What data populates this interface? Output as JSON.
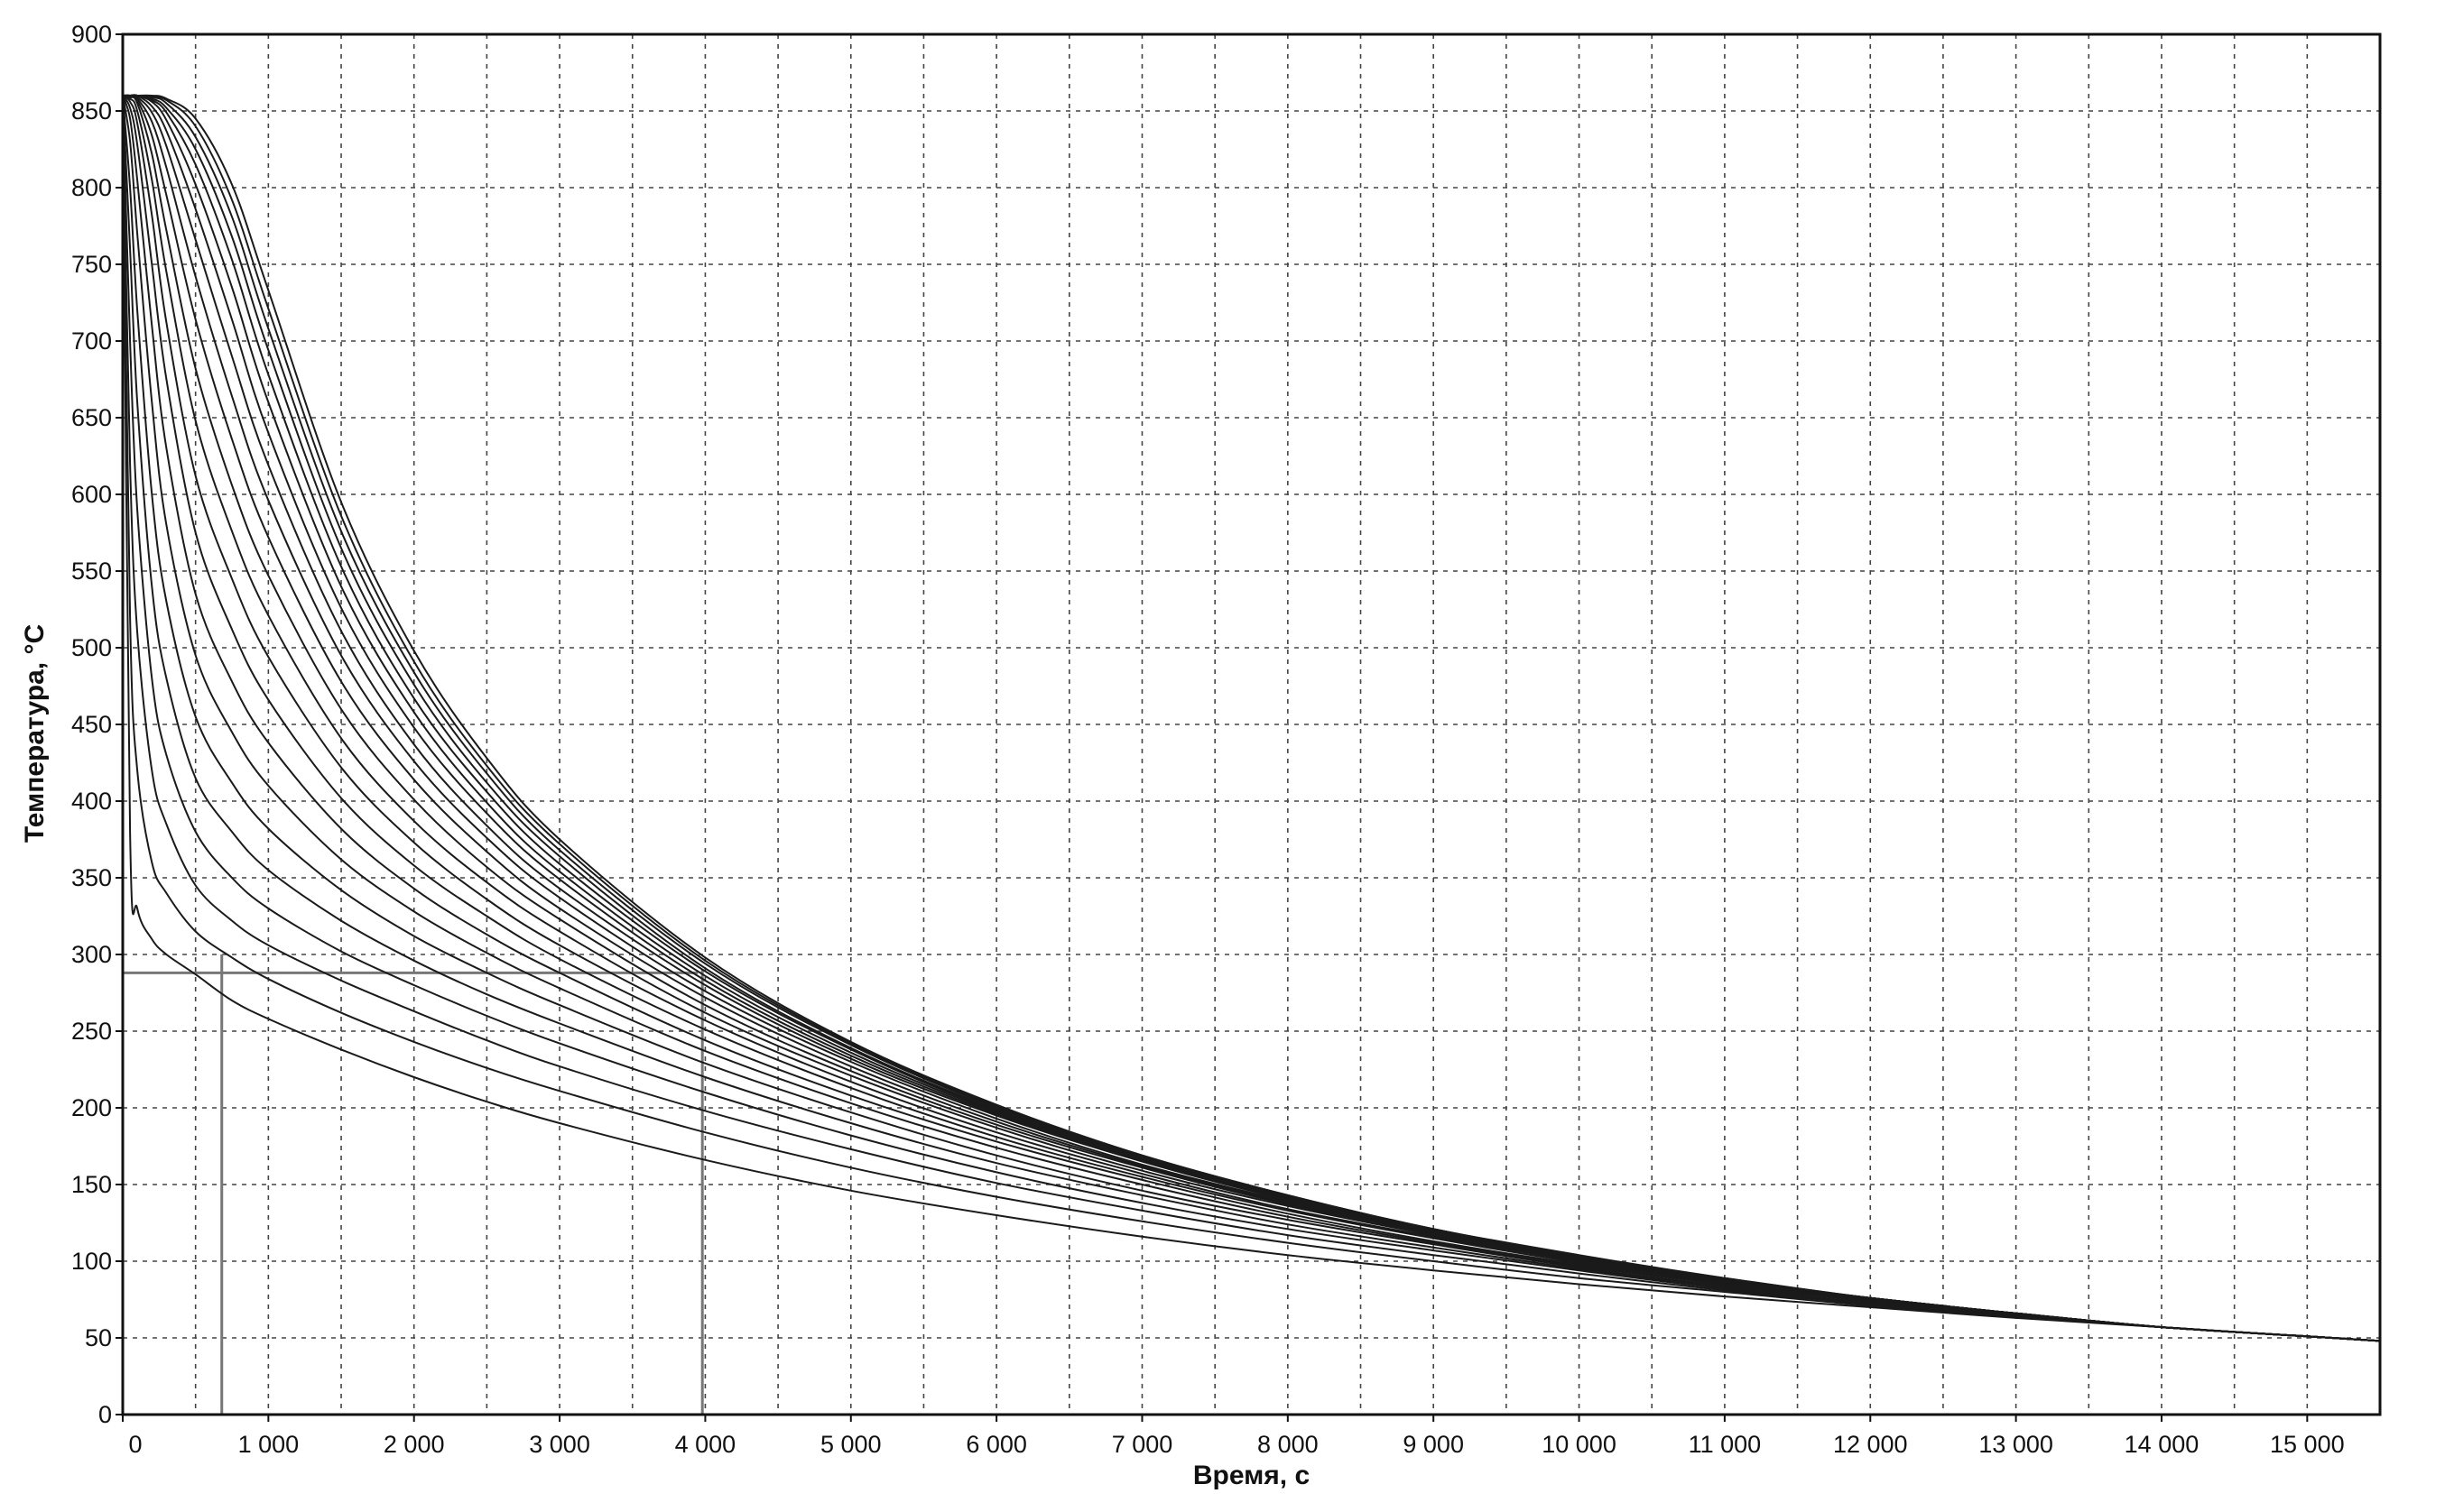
{
  "chart_data": {
    "type": "line",
    "title": "",
    "xlabel": "Время, с",
    "ylabel": "Температура, °С",
    "xlim": [
      0,
      15500
    ],
    "ylim": [
      0,
      900
    ],
    "x_ticks": [
      0,
      1000,
      2000,
      3000,
      4000,
      5000,
      6000,
      7000,
      8000,
      9000,
      10000,
      11000,
      12000,
      13000,
      14000,
      15000
    ],
    "x_tick_labels": [
      "0",
      "1 000",
      "2 000",
      "3 000",
      "4 000",
      "5 000",
      "6 000",
      "7 000",
      "8 000",
      "9 000",
      "10 000",
      "11 000",
      "12 000",
      "13 000",
      "14 000",
      "15 000"
    ],
    "y_ticks": [
      0,
      50,
      100,
      150,
      200,
      250,
      300,
      350,
      400,
      450,
      500,
      550,
      600,
      650,
      700,
      750,
      800,
      850,
      900
    ],
    "y_tick_labels": [
      "0",
      "50",
      "100",
      "150",
      "200",
      "250",
      "300",
      "350",
      "400",
      "450",
      "500",
      "550",
      "600",
      "650",
      "700",
      "750",
      "800",
      "850",
      "900"
    ],
    "grid": true,
    "grid_x_step": 500,
    "grid_style": "dashed",
    "legend": "none",
    "curve_color": "#1a1a1a",
    "series_x": [
      0,
      50,
      100,
      200,
      300,
      500,
      750,
      1000,
      1500,
      2000,
      2500,
      3000,
      4000,
      5000,
      6000,
      7000,
      8000,
      9000,
      10000,
      11000,
      12000,
      13000,
      14000,
      15000,
      15500
    ],
    "series": [
      {
        "values": [
          860,
          380,
          330,
          310,
          300,
          287,
          270,
          258,
          238,
          220,
          204,
          190,
          166,
          146,
          130,
          116,
          104,
          94,
          85,
          77,
          70,
          63,
          57,
          51,
          48
        ]
      },
      {
        "values": [
          860,
          520,
          420,
          360,
          340,
          315,
          298,
          284,
          262,
          243,
          226,
          211,
          184,
          161,
          142,
          126,
          112,
          100,
          89,
          80,
          71,
          64,
          57,
          51,
          48
        ]
      },
      {
        "values": [
          860,
          620,
          510,
          420,
          385,
          345,
          322,
          306,
          283,
          263,
          244,
          227,
          198,
          173,
          151,
          133,
          117,
          104,
          92,
          81,
          72,
          64,
          57,
          51,
          48
        ]
      },
      {
        "values": [
          860,
          700,
          590,
          480,
          430,
          380,
          350,
          330,
          302,
          280,
          260,
          242,
          210,
          182,
          158,
          138,
          121,
          107,
          94,
          82,
          73,
          64,
          57,
          51,
          48
        ]
      },
      {
        "values": [
          860,
          760,
          660,
          540,
          480,
          415,
          380,
          355,
          322,
          296,
          274,
          255,
          220,
          190,
          164,
          143,
          124,
          109,
          95,
          83,
          73,
          65,
          57,
          51,
          48
        ]
      },
      {
        "values": [
          860,
          800,
          720,
          600,
          530,
          455,
          412,
          382,
          342,
          312,
          288,
          267,
          229,
          197,
          169,
          146,
          127,
          111,
          96,
          84,
          74,
          65,
          57,
          51,
          48
        ]
      },
      {
        "values": [
          860,
          830,
          770,
          660,
          580,
          495,
          445,
          410,
          362,
          328,
          301,
          278,
          237,
          203,
          174,
          150,
          129,
          112,
          97,
          85,
          74,
          65,
          57,
          51,
          48
        ]
      },
      {
        "values": [
          860,
          845,
          805,
          710,
          630,
          535,
          478,
          438,
          382,
          343,
          313,
          288,
          244,
          208,
          178,
          153,
          131,
          113,
          98,
          85,
          74,
          65,
          57,
          51,
          48
        ]
      },
      {
        "values": [
          860,
          852,
          828,
          750,
          675,
          575,
          512,
          466,
          402,
          358,
          325,
          297,
          251,
          213,
          181,
          155,
          133,
          115,
          99,
          86,
          75,
          65,
          57,
          51,
          48
        ]
      },
      {
        "values": [
          860,
          856,
          842,
          782,
          712,
          612,
          545,
          494,
          422,
          373,
          336,
          306,
          257,
          217,
          184,
          157,
          134,
          116,
          100,
          86,
          75,
          65,
          57,
          51,
          48
        ]
      },
      {
        "values": [
          860,
          858,
          850,
          805,
          745,
          648,
          576,
          521,
          441,
          387,
          347,
          315,
          262,
          221,
          187,
          159,
          136,
          117,
          100,
          87,
          75,
          66,
          57,
          51,
          48
        ]
      },
      {
        "values": [
          860,
          859,
          855,
          822,
          772,
          682,
          606,
          547,
          460,
          401,
          357,
          323,
          267,
          224,
          189,
          161,
          137,
          117,
          101,
          87,
          75,
          66,
          57,
          51,
          48
        ]
      },
      {
        "values": [
          860,
          860,
          857,
          834,
          795,
          714,
          636,
          572,
          478,
          414,
          367,
          330,
          272,
          227,
          191,
          162,
          138,
          118,
          101,
          87,
          75,
          66,
          57,
          51,
          48
        ]
      },
      {
        "values": [
          860,
          860,
          858,
          843,
          813,
          742,
          664,
          596,
          495,
          426,
          376,
          337,
          276,
          230,
          193,
          163,
          139,
          119,
          102,
          88,
          76,
          66,
          57,
          51,
          48
        ]
      },
      {
        "values": [
          860,
          860,
          859,
          849,
          827,
          766,
          690,
          619,
          511,
          437,
          384,
          343,
          280,
          232,
          195,
          165,
          140,
          119,
          102,
          88,
          76,
          66,
          57,
          51,
          48
        ]
      },
      {
        "values": [
          860,
          860,
          860,
          853,
          837,
          786,
          714,
          640,
          526,
          448,
          392,
          349,
          283,
          234,
          196,
          166,
          140,
          120,
          102,
          88,
          76,
          66,
          57,
          51,
          48
        ]
      },
      {
        "values": [
          860,
          860,
          860,
          856,
          844,
          802,
          735,
          660,
          540,
          458,
          399,
          354,
          286,
          236,
          197,
          166,
          141,
          120,
          103,
          88,
          76,
          66,
          57,
          51,
          48
        ]
      },
      {
        "values": [
          860,
          860,
          860,
          857,
          849,
          815,
          753,
          678,
          553,
          467,
          406,
          359,
          289,
          238,
          198,
          167,
          141,
          120,
          103,
          88,
          76,
          66,
          57,
          51,
          48
        ]
      },
      {
        "values": [
          860,
          860,
          860,
          858,
          852,
          825,
          768,
          694,
          565,
          476,
          412,
          364,
          291,
          239,
          199,
          168,
          142,
          121,
          103,
          88,
          76,
          66,
          57,
          51,
          48
        ]
      },
      {
        "values": [
          860,
          860,
          860,
          859,
          855,
          833,
          781,
          708,
          576,
          484,
          418,
          368,
          294,
          241,
          200,
          168,
          142,
          121,
          103,
          88,
          76,
          66,
          57,
          51,
          48
        ]
      },
      {
        "values": [
          860,
          860,
          860,
          859,
          857,
          840,
          792,
          721,
          586,
          491,
          423,
          372,
          296,
          242,
          201,
          169,
          143,
          121,
          103,
          89,
          76,
          66,
          57,
          51,
          48
        ]
      },
      {
        "values": [
          860,
          860,
          860,
          860,
          858,
          845,
          802,
          733,
          595,
          498,
          428,
          375,
          298,
          243,
          202,
          169,
          143,
          121,
          104,
          89,
          76,
          66,
          57,
          51,
          48
        ]
      }
    ],
    "reference_lines": [
      {
        "orientation": "horizontal",
        "y": 288,
        "x_range": [
          0,
          3950
        ],
        "color": "#777777"
      },
      {
        "orientation": "vertical",
        "x": 680,
        "y_range": [
          0,
          300
        ],
        "color": "#777777"
      },
      {
        "orientation": "vertical",
        "x": 3980,
        "y_range": [
          0,
          290
        ],
        "color": "#777777"
      }
    ]
  }
}
